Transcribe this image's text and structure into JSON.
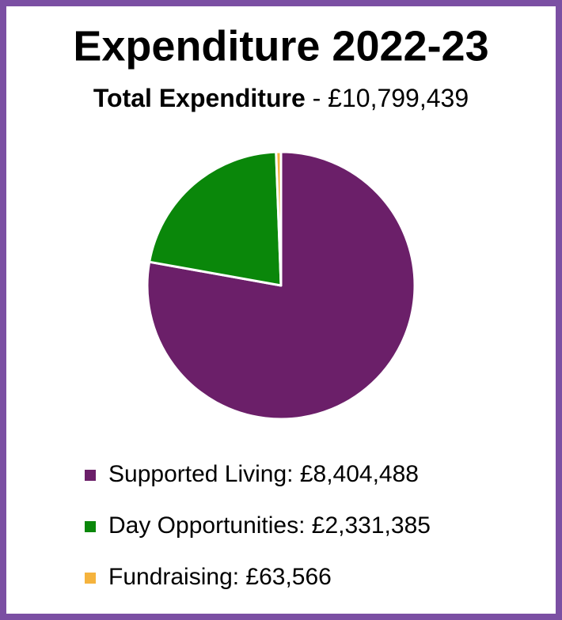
{
  "chart_data": {
    "type": "pie",
    "title": "Expenditure 2022-23",
    "subtitle_bold": "Total Expenditure",
    "subtitle_rest": "- £10,799,439",
    "labels": [
      "Supported Living: £8,404,488",
      "Day Opportunities: £2,331,385",
      "Fundraising: £63,566"
    ],
    "values": [
      8404488,
      2331385,
      63566
    ],
    "colors": [
      "#6b1f69",
      "#0a870a",
      "#f5b33d"
    ],
    "start_angle": 0,
    "direction": "clockwise"
  }
}
